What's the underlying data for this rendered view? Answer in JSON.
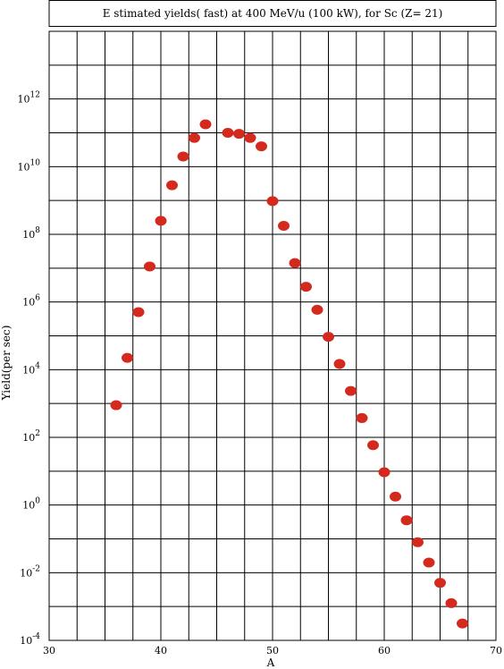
{
  "chart_data": {
    "type": "scatter",
    "title": "E stimated yields( fast) at 400  MeV/u (100  kW),  for Sc (Z= 21)",
    "xlabel": "A",
    "ylabel": "Yield(per sec)",
    "xlim": [
      30,
      70
    ],
    "ylim_log10": [
      -4,
      14
    ],
    "y_scale": "log",
    "x_ticks": [
      30,
      40,
      50,
      60,
      70
    ],
    "y_tick_exponents": [
      -4,
      -2,
      0,
      2,
      4,
      6,
      8,
      10,
      12
    ],
    "y_tick_base": "10",
    "grid": true,
    "marker_color": "#d42a1e",
    "points": [
      {
        "x": 36,
        "log10_y": 2.95
      },
      {
        "x": 37,
        "log10_y": 4.35
      },
      {
        "x": 38,
        "log10_y": 5.7
      },
      {
        "x": 39,
        "log10_y": 7.05
      },
      {
        "x": 40,
        "log10_y": 8.4
      },
      {
        "x": 41,
        "log10_y": 9.45
      },
      {
        "x": 42,
        "log10_y": 10.3
      },
      {
        "x": 43,
        "log10_y": 10.85
      },
      {
        "x": 44,
        "log10_y": 11.25
      },
      {
        "x": 46,
        "log10_y": 11.0
      },
      {
        "x": 47,
        "log10_y": 10.97
      },
      {
        "x": 48,
        "log10_y": 10.85
      },
      {
        "x": 49,
        "log10_y": 10.6
      },
      {
        "x": 50,
        "log10_y": 8.98
      },
      {
        "x": 51,
        "log10_y": 8.25
      },
      {
        "x": 52,
        "log10_y": 7.15
      },
      {
        "x": 53,
        "log10_y": 6.45
      },
      {
        "x": 54,
        "log10_y": 5.77
      },
      {
        "x": 55,
        "log10_y": 4.97
      },
      {
        "x": 56,
        "log10_y": 4.17
      },
      {
        "x": 57,
        "log10_y": 3.37
      },
      {
        "x": 58,
        "log10_y": 2.57
      },
      {
        "x": 59,
        "log10_y": 1.77
      },
      {
        "x": 60,
        "log10_y": 0.97
      },
      {
        "x": 61,
        "log10_y": 0.25
      },
      {
        "x": 62,
        "log10_y": -0.45
      },
      {
        "x": 63,
        "log10_y": -1.1
      },
      {
        "x": 64,
        "log10_y": -1.7
      },
      {
        "x": 65,
        "log10_y": -2.3
      },
      {
        "x": 66,
        "log10_y": -2.9
      },
      {
        "x": 67,
        "log10_y": -3.5
      }
    ]
  }
}
